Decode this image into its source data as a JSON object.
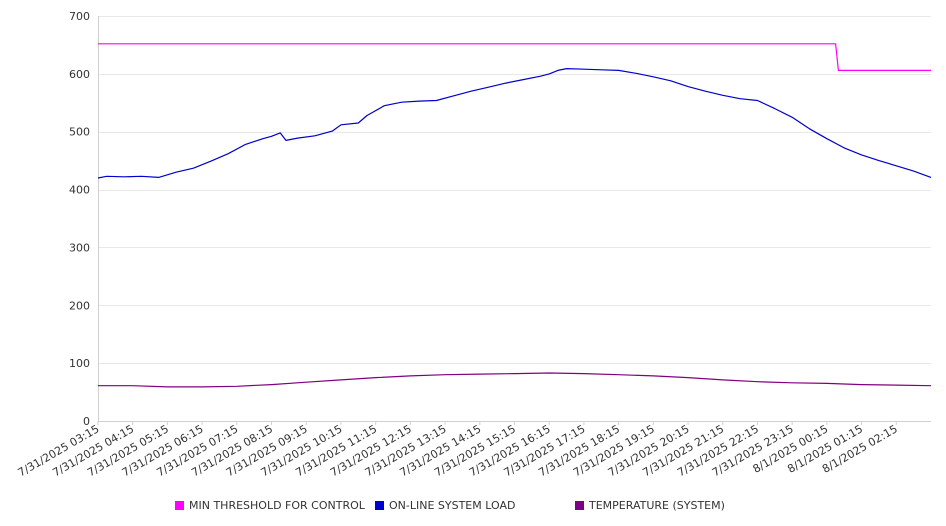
{
  "chart_data": {
    "type": "line",
    "title": "",
    "xlabel": "",
    "ylabel": "",
    "ylim": [
      0,
      700
    ],
    "yticks": [
      0,
      100,
      200,
      300,
      400,
      500,
      600,
      700
    ],
    "grid": true,
    "legend_position": "bottom",
    "x_tick_labels": [
      "7/31/2025 03:15",
      "7/31/2025 04:15",
      "7/31/2025 05:15",
      "7/31/2025 06:15",
      "7/31/2025 07:15",
      "7/31/2025 08:15",
      "7/31/2025 09:15",
      "7/31/2025 10:15",
      "7/31/2025 11:15",
      "7/31/2025 12:15",
      "7/31/2025 13:15",
      "7/31/2025 14:15",
      "7/31/2025 15:15",
      "7/31/2025 16:15",
      "7/31/2025 17:15",
      "7/31/2025 18:15",
      "7/31/2025 19:15",
      "7/31/2025 20:15",
      "7/31/2025 21:15",
      "7/31/2025 22:15",
      "7/31/2025 23:15",
      "8/1/2025 00:15",
      "8/1/2025 01:15",
      "8/1/2025 02:15"
    ],
    "x_range": [
      "7/31/2025 03:15",
      "8/1/2025 03:15"
    ],
    "series": [
      {
        "name": "MIN THRESHOLD FOR CONTROL",
        "color": "#ff00ff",
        "points": [
          [
            "7/31/2025 03:15",
            652
          ],
          [
            "8/1/2025 00:30",
            652
          ],
          [
            "8/1/2025 00:35",
            606
          ],
          [
            "8/1/2025 03:15",
            606
          ]
        ]
      },
      {
        "name": "ON-LINE SYSTEM LOAD",
        "color": "#0000cc",
        "points": [
          [
            "7/31/2025 03:15",
            420
          ],
          [
            "7/31/2025 03:30",
            423
          ],
          [
            "7/31/2025 04:00",
            422
          ],
          [
            "7/31/2025 04:30",
            423
          ],
          [
            "7/31/2025 05:00",
            421
          ],
          [
            "7/31/2025 05:30",
            430
          ],
          [
            "7/31/2025 06:00",
            437
          ],
          [
            "7/31/2025 06:30",
            449
          ],
          [
            "7/31/2025 07:00",
            462
          ],
          [
            "7/31/2025 07:30",
            478
          ],
          [
            "7/31/2025 08:00",
            488
          ],
          [
            "7/31/2025 08:15",
            492
          ],
          [
            "7/31/2025 08:30",
            498
          ],
          [
            "7/31/2025 08:40",
            485
          ],
          [
            "7/31/2025 09:00",
            489
          ],
          [
            "7/31/2025 09:30",
            493
          ],
          [
            "7/31/2025 10:00",
            501
          ],
          [
            "7/31/2025 10:15",
            512
          ],
          [
            "7/31/2025 10:45",
            515
          ],
          [
            "7/31/2025 11:00",
            528
          ],
          [
            "7/31/2025 11:30",
            545
          ],
          [
            "7/31/2025 12:00",
            551
          ],
          [
            "7/31/2025 12:30",
            553
          ],
          [
            "7/31/2025 13:00",
            554
          ],
          [
            "7/31/2025 13:30",
            562
          ],
          [
            "7/31/2025 14:00",
            570
          ],
          [
            "7/31/2025 14:30",
            577
          ],
          [
            "7/31/2025 15:00",
            584
          ],
          [
            "7/31/2025 15:30",
            590
          ],
          [
            "7/31/2025 16:00",
            596
          ],
          [
            "7/31/2025 16:15",
            600
          ],
          [
            "7/31/2025 16:30",
            606
          ],
          [
            "7/31/2025 16:45",
            609
          ],
          [
            "7/31/2025 17:15",
            608
          ],
          [
            "7/31/2025 17:45",
            607
          ],
          [
            "7/31/2025 18:15",
            606
          ],
          [
            "7/31/2025 18:45",
            601
          ],
          [
            "7/31/2025 19:15",
            595
          ],
          [
            "7/31/2025 19:45",
            588
          ],
          [
            "7/31/2025 20:15",
            578
          ],
          [
            "7/31/2025 20:45",
            570
          ],
          [
            "7/31/2025 21:15",
            563
          ],
          [
            "7/31/2025 21:45",
            557
          ],
          [
            "7/31/2025 22:15",
            554
          ],
          [
            "7/31/2025 22:45",
            540
          ],
          [
            "7/31/2025 23:15",
            525
          ],
          [
            "7/31/2025 23:45",
            505
          ],
          [
            "8/1/2025 00:15",
            488
          ],
          [
            "8/1/2025 00:45",
            472
          ],
          [
            "8/1/2025 01:15",
            460
          ],
          [
            "8/1/2025 01:45",
            450
          ],
          [
            "8/1/2025 02:15",
            441
          ],
          [
            "8/1/2025 02:45",
            432
          ],
          [
            "8/1/2025 03:15",
            421
          ]
        ]
      },
      {
        "name": "TEMPERATURE (SYSTEM)",
        "color": "#800080",
        "points": [
          [
            "7/31/2025 03:15",
            61
          ],
          [
            "7/31/2025 04:15",
            61
          ],
          [
            "7/31/2025 05:15",
            59
          ],
          [
            "7/31/2025 06:15",
            59
          ],
          [
            "7/31/2025 07:15",
            60
          ],
          [
            "7/31/2025 08:15",
            63
          ],
          [
            "7/31/2025 09:15",
            67
          ],
          [
            "7/31/2025 10:15",
            71
          ],
          [
            "7/31/2025 11:15",
            75
          ],
          [
            "7/31/2025 12:15",
            78
          ],
          [
            "7/31/2025 13:15",
            80
          ],
          [
            "7/31/2025 14:15",
            81
          ],
          [
            "7/31/2025 15:15",
            82
          ],
          [
            "7/31/2025 16:15",
            83
          ],
          [
            "7/31/2025 17:15",
            82
          ],
          [
            "7/31/2025 18:15",
            80
          ],
          [
            "7/31/2025 19:15",
            78
          ],
          [
            "7/31/2025 20:15",
            75
          ],
          [
            "7/31/2025 21:15",
            71
          ],
          [
            "7/31/2025 22:15",
            68
          ],
          [
            "7/31/2025 23:15",
            66
          ],
          [
            "8/1/2025 00:15",
            65
          ],
          [
            "8/1/2025 01:15",
            63
          ],
          [
            "8/1/2025 02:15",
            62
          ],
          [
            "8/1/2025 03:15",
            61
          ]
        ]
      }
    ]
  }
}
